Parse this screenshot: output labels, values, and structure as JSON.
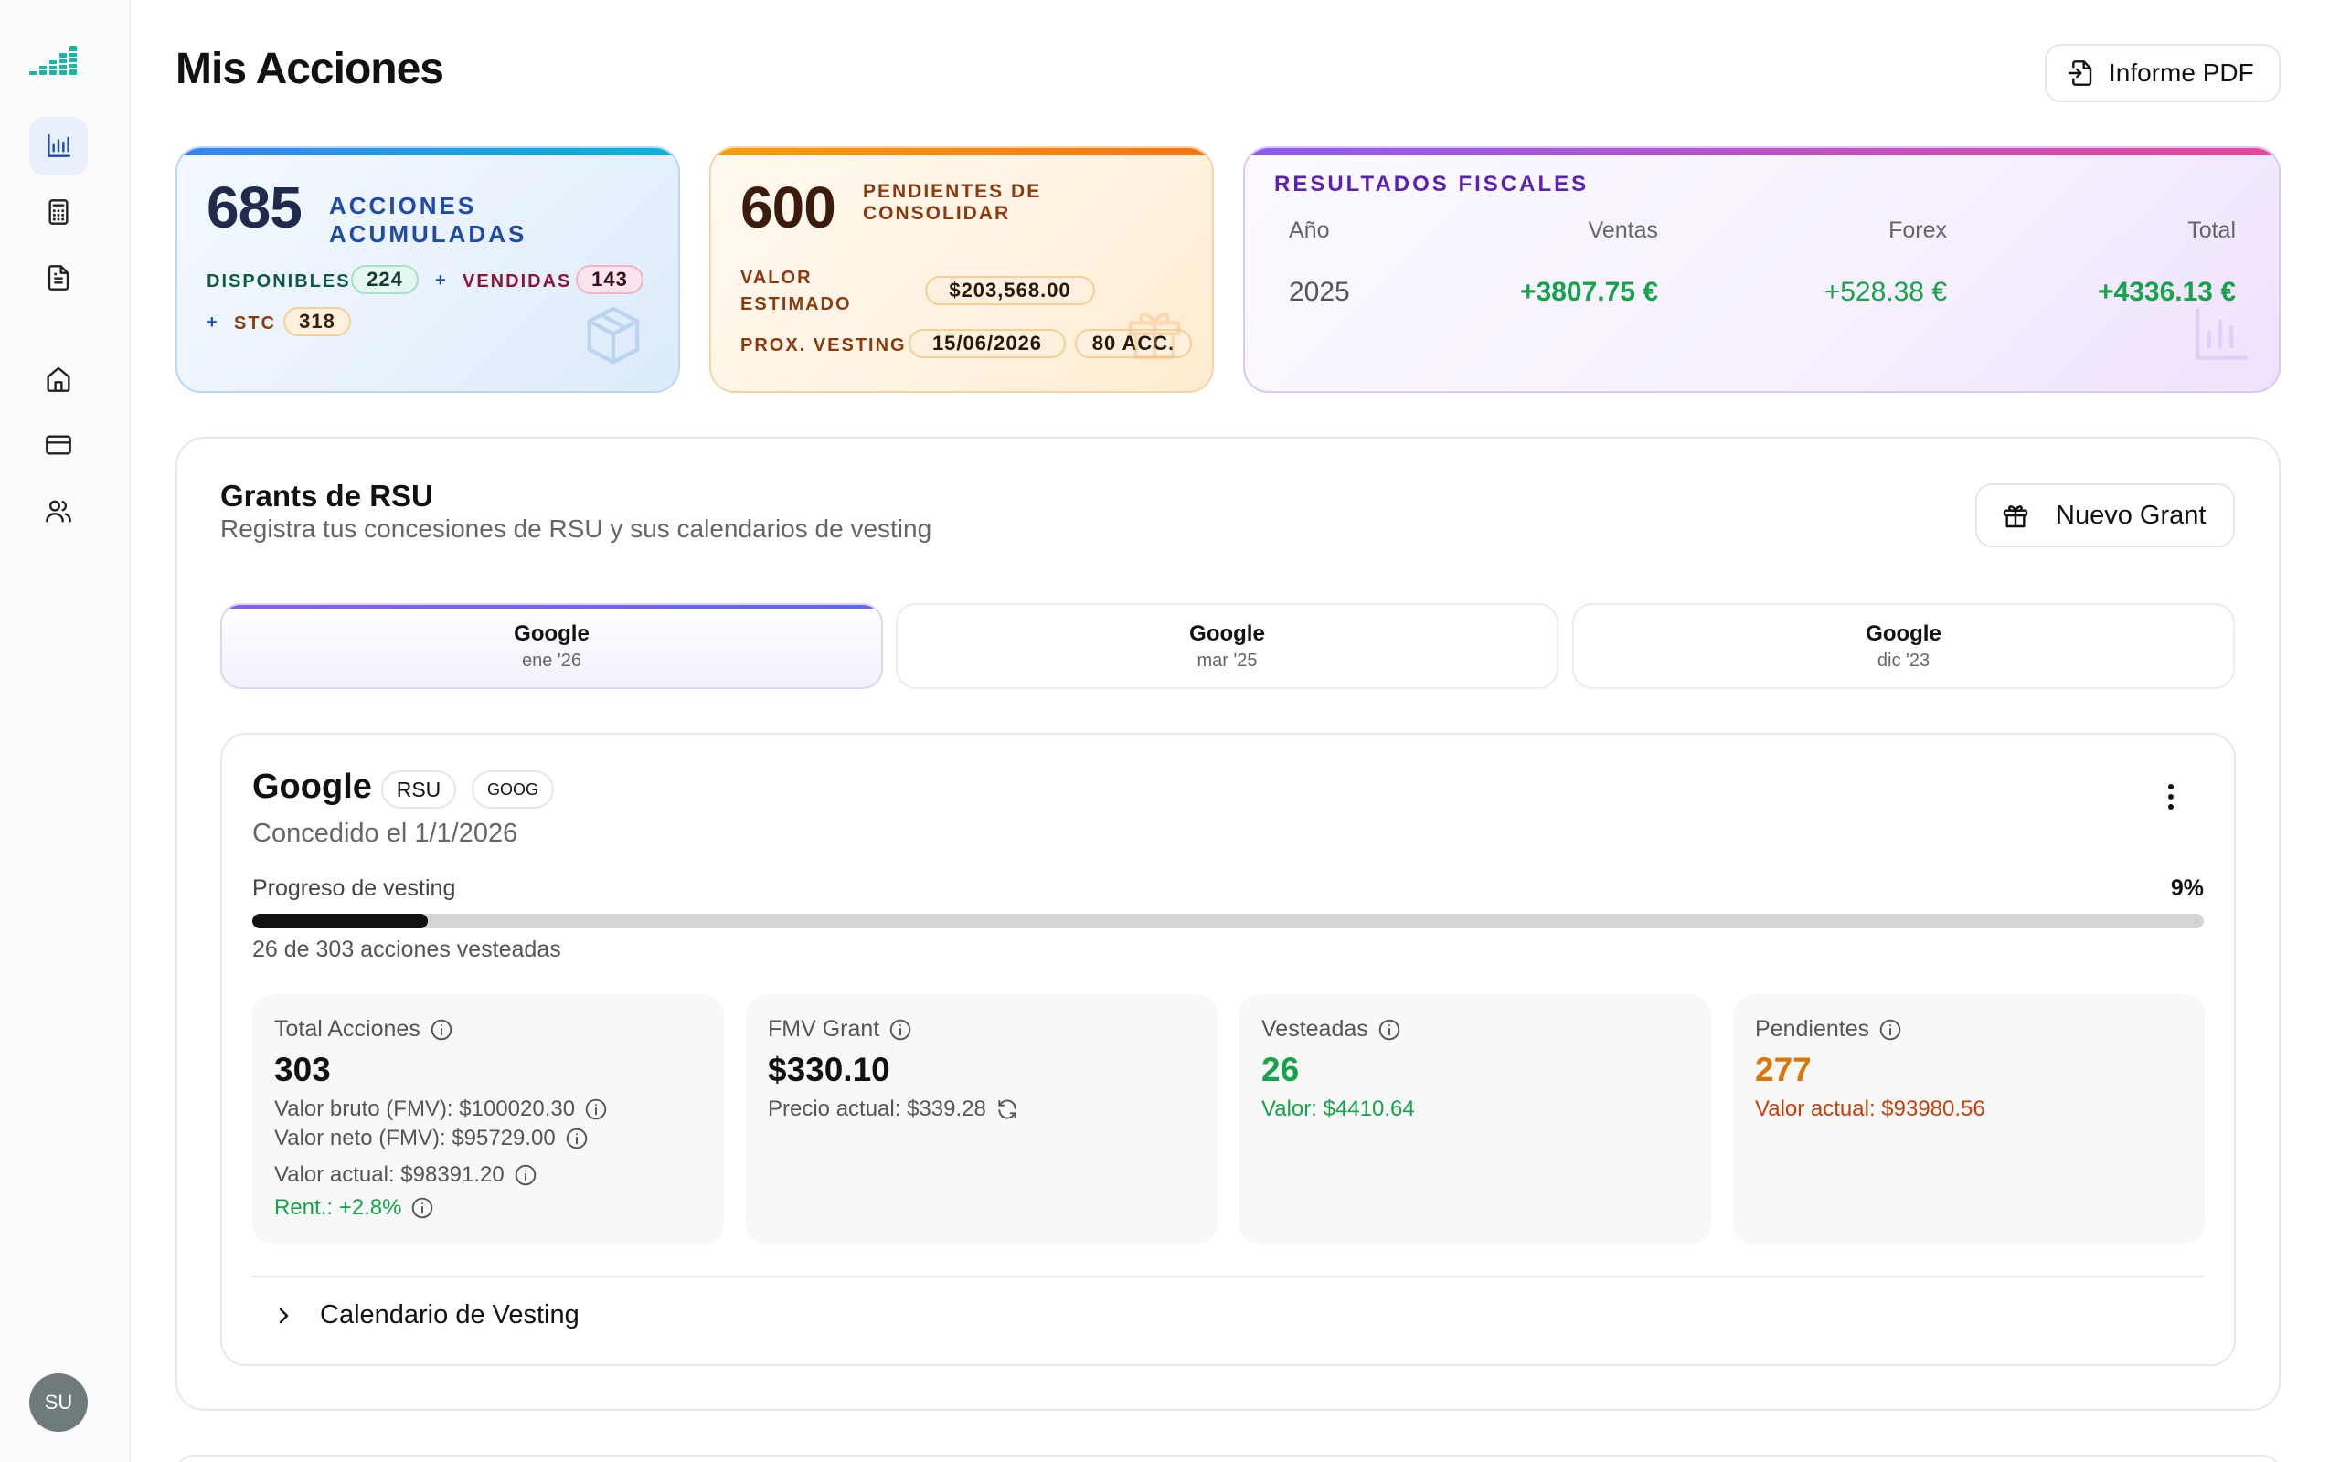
{
  "header": {
    "title": "Mis Acciones",
    "pdf_label": "Informe PDF"
  },
  "sidebar": {
    "items": [
      {
        "icon": "bar-chart-icon",
        "active": true
      },
      {
        "icon": "calculator-icon",
        "active": false
      },
      {
        "icon": "document-icon",
        "active": false
      },
      {
        "icon": "home-icon",
        "active": false
      },
      {
        "icon": "credit-card-icon",
        "active": false
      },
      {
        "icon": "users-icon",
        "active": false
      }
    ],
    "avatar_initials": "SU"
  },
  "summary": {
    "accumulated": {
      "count": "685",
      "label": "Acciones acumuladas",
      "available_label": "Disponibles",
      "available": "224",
      "sold_label": "Vendidas",
      "sold": "143",
      "stc_label": "STC",
      "stc": "318",
      "plus": "+"
    },
    "pending": {
      "count": "600",
      "label": "Pendientes de consolidar",
      "estimated_label": "Valor estimado",
      "estimated_value": "$203,568.00",
      "next_vesting_label": "Prox. vesting",
      "next_vesting_date": "15/06/2026",
      "next_vesting_amount": "80 ACC."
    },
    "fiscal": {
      "title": "Resultados fiscales",
      "headers": {
        "year": "Año",
        "sales": "Ventas",
        "forex": "Forex",
        "total": "Total"
      },
      "row": {
        "year": "2025",
        "sales": "+3807.75 €",
        "forex": "+528.38 €",
        "total": "+4336.13 €"
      }
    }
  },
  "grants": {
    "title": "Grants de RSU",
    "subtitle": "Registra tus concesiones de RSU y sus calendarios de vesting",
    "new_label": "Nuevo Grant",
    "tabs": [
      {
        "name": "Google",
        "date": "ene '26"
      },
      {
        "name": "Google",
        "date": "mar '25"
      },
      {
        "name": "Google",
        "date": "dic '23"
      }
    ],
    "detail": {
      "name": "Google",
      "type_badge": "RSU",
      "ticker_badge": "GOOG",
      "granted_on": "Concedido el 1/1/2026",
      "progress_label": "Progreso de vesting",
      "progress_pct": "9%",
      "progress_value": 0.09,
      "progress_sub": "26 de 303 acciones vesteadas",
      "stats": {
        "total": {
          "label": "Total Acciones",
          "value": "303",
          "gross": "Valor bruto (FMV): $100020.30",
          "net": "Valor neto (FMV): $95729.00",
          "current": "Valor actual: $98391.20",
          "return": "Rent.: +2.8%"
        },
        "fmv": {
          "label": "FMV Grant",
          "value": "$330.10",
          "current_price": "Precio actual: $339.28"
        },
        "vested": {
          "label": "Vesteadas",
          "value": "26",
          "sub": "Valor: $4410.64"
        },
        "pending": {
          "label": "Pendientes",
          "value": "277",
          "sub": "Valor actual: $93980.56"
        }
      },
      "calendar_label": "Calendario de Vesting"
    }
  },
  "colors": {
    "green": "#16a34a",
    "orange": "#d97706",
    "blue_caption": "#1e4aa8",
    "purple_caption": "#5b21b6",
    "brown_caption": "#7a3a0c"
  }
}
